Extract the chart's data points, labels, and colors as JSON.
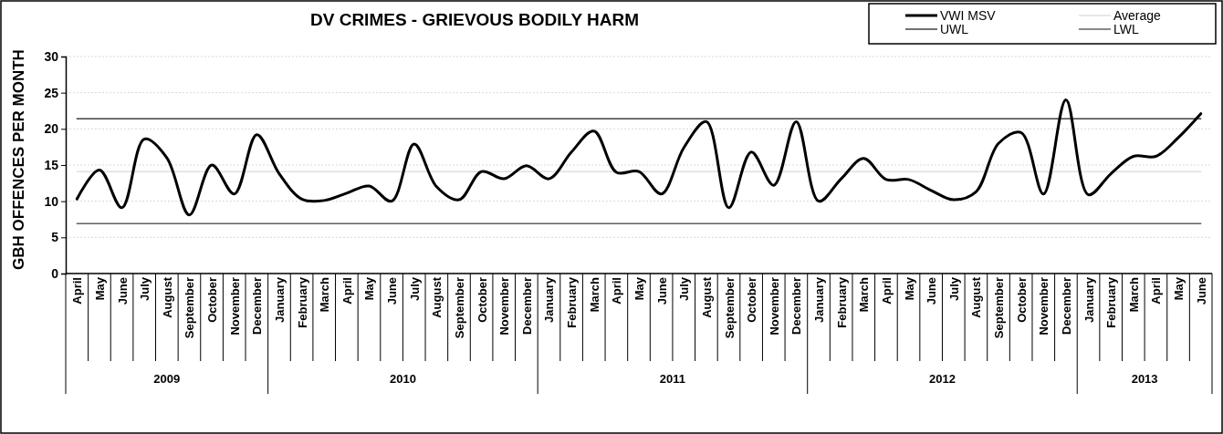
{
  "chart_data": {
    "type": "line",
    "title": "DV CRIMES - GRIEVOUS BODILY HARM",
    "ylabel": "GBH OFFENCES PER MONTH",
    "categories": [
      "April",
      "May",
      "June",
      "July",
      "August",
      "September",
      "October",
      "November",
      "December",
      "January",
      "February",
      "March",
      "April",
      "May",
      "June",
      "July",
      "August",
      "September",
      "October",
      "November",
      "December",
      "January",
      "February",
      "March",
      "April",
      "May",
      "June",
      "July",
      "August",
      "September",
      "October",
      "November",
      "December",
      "January",
      "February",
      "March",
      "April",
      "May",
      "June",
      "July",
      "August",
      "September",
      "October",
      "November",
      "December",
      "January",
      "February",
      "March",
      "April",
      "May",
      "June"
    ],
    "series": [
      {
        "name": "VWI MSV",
        "color": "#000000",
        "values": [
          10.3,
          14.3,
          9.1,
          18.6,
          16,
          8.1,
          15,
          11,
          19.2,
          13.8,
          10.3,
          10.1,
          11.1,
          12.1,
          10,
          17.9,
          12,
          10.2,
          14.1,
          13.1,
          14.9,
          13.1,
          16.8,
          19.7,
          14,
          14.1,
          11,
          17.4,
          21,
          9.1,
          16.8,
          12.2,
          21,
          10,
          13.1,
          15.9,
          13,
          13,
          11.5,
          10.2,
          11.3,
          18,
          19.5,
          11,
          24,
          10.9,
          13.8,
          16.2,
          16.2,
          18.8,
          22.1
        ]
      },
      {
        "name": "Average",
        "color": "#e0e0e0",
        "values": [
          14.1,
          14.1,
          14.1,
          14.1,
          14.1,
          14.1,
          14.1,
          14.1,
          14.1,
          14.1,
          14.1,
          14.1,
          14.1,
          14.1,
          14.1,
          14.1,
          14.1,
          14.1,
          14.1,
          14.1,
          14.1,
          14.1,
          14.1,
          14.1,
          14.1,
          14.1,
          14.1,
          14.1,
          14.1,
          14.1,
          14.1,
          14.1,
          14.1,
          14.1,
          14.1,
          14.1,
          14.1,
          14.1,
          14.1,
          14.1,
          14.1,
          14.1,
          14.1,
          14.1,
          14.1,
          14.1,
          14.1,
          14.1,
          14.1,
          14.1,
          14.1
        ]
      },
      {
        "name": "UWL",
        "color": "#404040",
        "values": [
          21.4,
          21.4,
          21.4,
          21.4,
          21.4,
          21.4,
          21.4,
          21.4,
          21.4,
          21.4,
          21.4,
          21.4,
          21.4,
          21.4,
          21.4,
          21.4,
          21.4,
          21.4,
          21.4,
          21.4,
          21.4,
          21.4,
          21.4,
          21.4,
          21.4,
          21.4,
          21.4,
          21.4,
          21.4,
          21.4,
          21.4,
          21.4,
          21.4,
          21.4,
          21.4,
          21.4,
          21.4,
          21.4,
          21.4,
          21.4,
          21.4,
          21.4,
          21.4,
          21.4,
          21.4,
          21.4,
          21.4,
          21.4,
          21.4,
          21.4,
          21.4
        ]
      },
      {
        "name": "LWL",
        "color": "#606060",
        "values": [
          6.9,
          6.9,
          6.9,
          6.9,
          6.9,
          6.9,
          6.9,
          6.9,
          6.9,
          6.9,
          6.9,
          6.9,
          6.9,
          6.9,
          6.9,
          6.9,
          6.9,
          6.9,
          6.9,
          6.9,
          6.9,
          6.9,
          6.9,
          6.9,
          6.9,
          6.9,
          6.9,
          6.9,
          6.9,
          6.9,
          6.9,
          6.9,
          6.9,
          6.9,
          6.9,
          6.9,
          6.9,
          6.9,
          6.9,
          6.9,
          6.9,
          6.9,
          6.9,
          6.9,
          6.9,
          6.9,
          6.9,
          6.9,
          6.9,
          6.9,
          6.9
        ]
      }
    ],
    "annotations": [
      "2009",
      "2010",
      "2011",
      "2012",
      "2013"
    ],
    "ylim": [
      0,
      30
    ],
    "yticks": [
      0,
      5,
      10,
      15,
      20,
      25,
      30
    ],
    "grid": "y",
    "legend": "top right",
    "marker": "none",
    "line_style": "solid"
  }
}
